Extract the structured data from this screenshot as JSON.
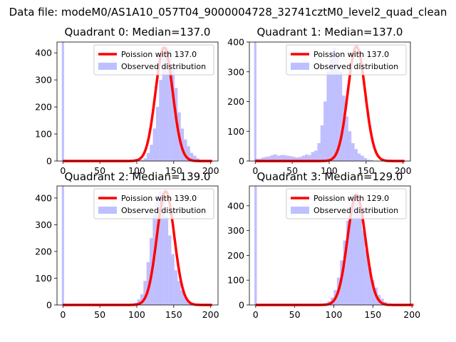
{
  "figure": {
    "suptitle": "Data file: modeM0/AS1A10_057T04_9000004728_32741cztM0_level2_quad_clean"
  },
  "colors": {
    "fit": "#ff0000",
    "hist": "#8080ff"
  },
  "chart_data": [
    {
      "type": "bar+line",
      "title": "Quadrant 0: Median=137.0",
      "xlim": [
        -8,
        210
      ],
      "ylim": [
        0,
        440
      ],
      "xticks": [
        0,
        50,
        100,
        150,
        200
      ],
      "yticks": [
        0,
        100,
        200,
        300,
        400
      ],
      "xticklabels": [
        "0",
        "50",
        "100",
        "150",
        "200"
      ],
      "yticklabels": [
        "0",
        "100",
        "200",
        "300",
        "400"
      ],
      "legend": [
        "Poission with 137.0",
        "Observed distribution"
      ],
      "fit": {
        "lambda": 137.0,
        "peak": 420,
        "sigma": 11.7
      },
      "spike": {
        "x": 0,
        "height": 440
      },
      "hist": {
        "x0": 84,
        "width": 4.2,
        "values": [
          0,
          0,
          3,
          8,
          5,
          4,
          10,
          30,
          60,
          120,
          200,
          300,
          380,
          420,
          410,
          360,
          270,
          180,
          120,
          80,
          55,
          30,
          20,
          10,
          5,
          4
        ]
      }
    },
    {
      "type": "bar+line",
      "title": "Quadrant 1: Median=137.0",
      "xlim": [
        -8,
        210
      ],
      "ylim": [
        0,
        400
      ],
      "xticks": [
        0,
        50,
        100,
        150,
        200
      ],
      "yticks": [
        0,
        100,
        200,
        300,
        400
      ],
      "xticklabels": [
        "0",
        "50",
        "100",
        "150",
        "200"
      ],
      "yticklabels": [
        "0",
        "100",
        "200",
        "300",
        "400"
      ],
      "legend": [
        "Poission with 137.0",
        "Observed distribution"
      ],
      "fit": {
        "lambda": 137.0,
        "peak": 385,
        "sigma": 11.7
      },
      "spike": {
        "x": 0,
        "height": 400
      },
      "hist": {
        "x0": 0,
        "width": 4.2,
        "values": [
          8,
          8,
          12,
          14,
          16,
          20,
          22,
          18,
          20,
          20,
          18,
          16,
          14,
          12,
          14,
          18,
          22,
          20,
          30,
          35,
          60,
          120,
          200,
          300,
          370,
          380,
          360,
          300,
          220,
          150,
          100,
          60,
          40,
          25,
          18,
          10,
          5,
          3
        ]
      }
    },
    {
      "type": "bar+line",
      "title": "Quadrant 2: Median=139.0",
      "xlim": [
        -8,
        210
      ],
      "ylim": [
        0,
        445
      ],
      "xticks": [
        0,
        50,
        100,
        150,
        200
      ],
      "yticks": [
        0,
        100,
        200,
        300,
        400
      ],
      "xticklabels": [
        "0",
        "50",
        "100",
        "150",
        "200"
      ],
      "yticklabels": [
        "0",
        "100",
        "200",
        "300",
        "400"
      ],
      "legend": [
        "Poission with 139.0",
        "Observed distribution"
      ],
      "fit": {
        "lambda": 139.0,
        "peak": 425,
        "sigma": 11.8
      },
      "spike": {
        "x": 0,
        "height": 445
      },
      "hist": {
        "x0": 88,
        "width": 4.2,
        "values": [
          2,
          4,
          8,
          20,
          40,
          90,
          160,
          250,
          340,
          410,
          425,
          400,
          330,
          260,
          190,
          130,
          90,
          55,
          30,
          15,
          8,
          3
        ]
      }
    },
    {
      "type": "bar+line",
      "title": "Quadrant 3: Median=129.0",
      "xlim": [
        -8,
        198
      ],
      "ylim": [
        0,
        480
      ],
      "xticks": [
        0,
        50,
        100,
        150,
        200
      ],
      "yticks": [
        0,
        100,
        200,
        300,
        400
      ],
      "xticklabels": [
        "0",
        "50",
        "100",
        "150",
        "200"
      ],
      "yticklabels": [
        "0",
        "100",
        "200",
        "300",
        "400"
      ],
      "legend": [
        "Poission with 129.0",
        "Observed distribution"
      ],
      "fit": {
        "lambda": 129.0,
        "peak": 445,
        "sigma": 11.4
      },
      "spike": {
        "x": 0,
        "height": 480
      },
      "hist": {
        "x0": 80,
        "width": 4.0,
        "values": [
          2,
          4,
          8,
          15,
          30,
          60,
          110,
          180,
          260,
          340,
          400,
          450,
          430,
          380,
          300,
          220,
          150,
          100,
          70,
          40,
          25,
          12,
          5,
          2
        ]
      }
    }
  ]
}
